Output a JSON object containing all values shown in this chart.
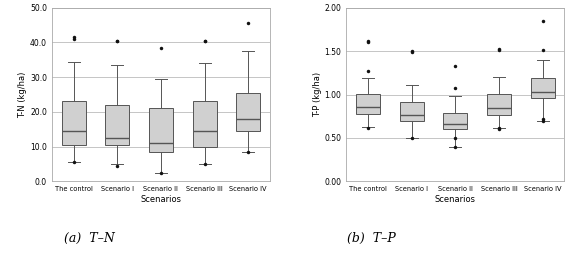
{
  "tn": {
    "title": "(a)  T–N",
    "ylabel": "T-N (kg/ha)",
    "xlabel": "Scenarios",
    "ylim": [
      0.0,
      50.0
    ],
    "yticks": [
      0.0,
      10.0,
      20.0,
      30.0,
      40.0,
      50.0
    ],
    "yticklabels": [
      "0.0",
      "10.0",
      "20.0",
      "30.0",
      "40.0",
      "50.0"
    ],
    "categories": [
      "The control",
      "Scenario I",
      "Scenario II",
      "Scenario III",
      "Scenario IV"
    ],
    "boxes": [
      {
        "q1": 10.5,
        "median": 14.5,
        "q3": 23.0,
        "whislo": 5.5,
        "whishi": 34.5,
        "fliers": [
          5.5,
          41.0,
          41.5
        ]
      },
      {
        "q1": 10.5,
        "median": 12.5,
        "q3": 22.0,
        "whislo": 5.0,
        "whishi": 33.5,
        "fliers": [
          4.5,
          40.5,
          40.5
        ]
      },
      {
        "q1": 8.5,
        "median": 11.0,
        "q3": 21.0,
        "whislo": 2.5,
        "whishi": 29.5,
        "fliers": [
          2.5,
          38.5
        ]
      },
      {
        "q1": 10.0,
        "median": 14.5,
        "q3": 23.0,
        "whislo": 5.0,
        "whishi": 34.0,
        "fliers": [
          5.0,
          40.5,
          40.5
        ]
      },
      {
        "q1": 14.5,
        "median": 18.0,
        "q3": 25.5,
        "whislo": 8.5,
        "whishi": 37.5,
        "fliers": [
          8.5,
          45.5
        ]
      }
    ]
  },
  "tp": {
    "title": "(b)  T–P",
    "ylabel": "T-P (kg/ha)",
    "xlabel": "Scenarios",
    "ylim": [
      0.0,
      2.0
    ],
    "yticks": [
      0.0,
      0.5,
      1.0,
      1.5,
      2.0
    ],
    "yticklabels": [
      "0.00",
      "0.50",
      "1.00",
      "1.50",
      "2.00"
    ],
    "categories": [
      "The control",
      "Scenario I",
      "Scenario II",
      "Scenario III",
      "Scenario IV"
    ],
    "boxes": [
      {
        "q1": 0.78,
        "median": 0.86,
        "q3": 1.01,
        "whislo": 0.63,
        "whishi": 1.19,
        "fliers": [
          0.62,
          1.27,
          1.61,
          1.62
        ]
      },
      {
        "q1": 0.7,
        "median": 0.76,
        "q3": 0.91,
        "whislo": 0.5,
        "whishi": 1.11,
        "fliers": [
          0.5,
          1.49,
          1.5
        ]
      },
      {
        "q1": 0.6,
        "median": 0.66,
        "q3": 0.79,
        "whislo": 0.4,
        "whishi": 0.98,
        "fliers": [
          0.39,
          0.5,
          1.08,
          1.33
        ]
      },
      {
        "q1": 0.76,
        "median": 0.84,
        "q3": 1.01,
        "whislo": 0.62,
        "whishi": 1.2,
        "fliers": [
          0.6,
          0.62,
          1.51,
          1.53
        ]
      },
      {
        "q1": 0.96,
        "median": 1.03,
        "q3": 1.19,
        "whislo": 0.7,
        "whishi": 1.4,
        "fliers": [
          0.7,
          0.72,
          1.51,
          1.85
        ]
      }
    ]
  },
  "box_facecolor": "#d0d0d0",
  "box_edgecolor": "#555555",
  "flier_color": "#111111",
  "median_color": "#555555",
  "whisker_color": "#555555",
  "cap_color": "#555555",
  "grid_color": "#bbbbbb",
  "bg_color": "#ffffff"
}
